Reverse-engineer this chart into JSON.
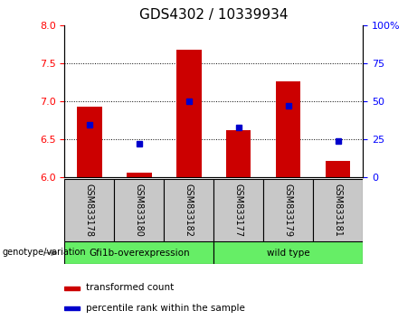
{
  "title": "GDS4302 / 10339934",
  "samples": [
    "GSM833178",
    "GSM833180",
    "GSM833182",
    "GSM833177",
    "GSM833179",
    "GSM833181"
  ],
  "transformed_counts": [
    6.93,
    6.07,
    7.68,
    6.62,
    7.27,
    6.22
  ],
  "percentile_ranks": [
    35,
    22,
    50,
    33,
    47,
    24
  ],
  "ylim_left": [
    6.0,
    8.0
  ],
  "ylim_right": [
    0,
    100
  ],
  "yticks_left": [
    6.0,
    6.5,
    7.0,
    7.5,
    8.0
  ],
  "yticks_right": [
    0,
    25,
    50,
    75,
    100
  ],
  "bar_color": "#CC0000",
  "dot_color": "#0000CC",
  "bar_bottom": 6.0,
  "sample_box_color": "#C8C8C8",
  "green_color": "#66EE66",
  "group1_label": "Gfi1b-overexpression",
  "group2_label": "wild type",
  "legend_label1": "transformed count",
  "legend_label2": "percentile rank within the sample",
  "genotype_label": "genotype/variation",
  "title_fontsize": 11,
  "tick_fontsize": 8,
  "label_fontsize": 7.5,
  "legend_fontsize": 7.5
}
